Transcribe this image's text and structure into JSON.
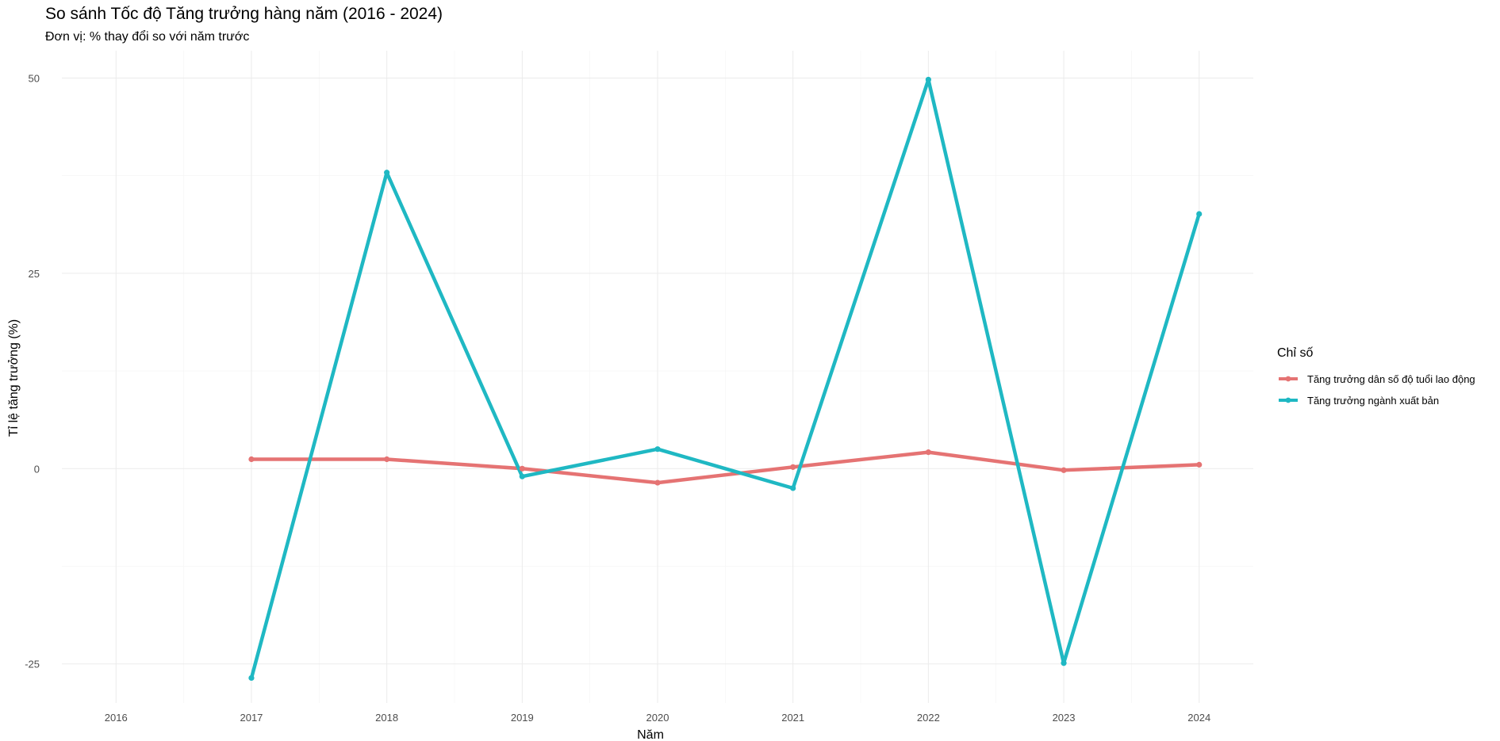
{
  "chart_data": {
    "type": "line",
    "title": "So sánh Tốc độ Tăng trưởng hàng năm (2016 - 2024)",
    "subtitle": "Đơn vị: % thay đổi so với năm trước",
    "xlabel": "Năm",
    "ylabel": "Tỉ lệ tăng trưởng (%)",
    "x_ticks": [
      2016,
      2017,
      2018,
      2019,
      2020,
      2021,
      2022,
      2023,
      2024
    ],
    "y_ticks": [
      -25,
      0,
      25,
      50
    ],
    "xlim": [
      2015.6,
      2024.4
    ],
    "ylim": [
      -30,
      53.5
    ],
    "grid": true,
    "legend": {
      "title": "Chỉ số",
      "position": "right"
    },
    "series": [
      {
        "name": "Tăng trưởng dân số độ tuổi lao động",
        "color": "#e57373",
        "x": [
          2017,
          2018,
          2019,
          2020,
          2021,
          2022,
          2023,
          2024
        ],
        "values": [
          1.2,
          1.2,
          0.0,
          -1.8,
          0.2,
          2.1,
          -0.2,
          0.5
        ]
      },
      {
        "name": "Tăng trưởng ngành xuất bản",
        "color": "#1fb8c3",
        "x": [
          2017,
          2018,
          2019,
          2020,
          2021,
          2022,
          2023,
          2024
        ],
        "values": [
          -26.8,
          37.9,
          -1.0,
          2.5,
          -2.5,
          49.8,
          -24.9,
          32.6
        ]
      }
    ]
  }
}
